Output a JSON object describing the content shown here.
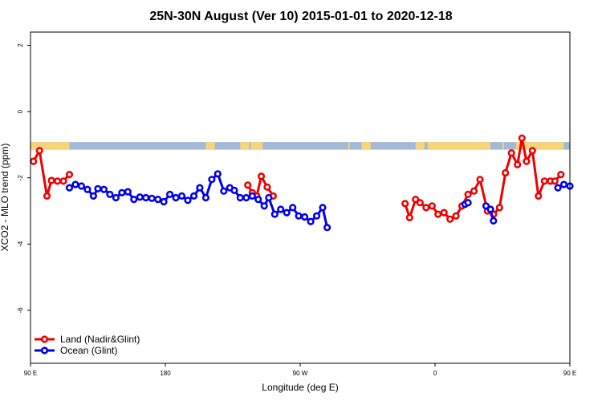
{
  "chart_data": {
    "type": "line",
    "title": "25N-30N August (Ver 10)   2015-01-01 to 2020-12-18",
    "xlabel": "Longitude (deg E)",
    "ylabel": "XCO2 - MLO trend (ppm)",
    "xlim": [
      90,
      450
    ],
    "ylim": [
      -7.6,
      2.4
    ],
    "x_ticks": [
      {
        "value": 90,
        "label": "90 E"
      },
      {
        "value": 180,
        "label": "180"
      },
      {
        "value": 270,
        "label": "90 W"
      },
      {
        "value": 360,
        "label": "0"
      },
      {
        "value": 450,
        "label": "90 E"
      },
      {
        "value": 540,
        "label": "180"
      }
    ],
    "y_ticks": [
      2,
      0,
      -2,
      -4,
      -6
    ],
    "land_ocean_strip": {
      "y_range": [
        -1.15,
        -0.92
      ],
      "ocean_color": "#a3b9d8",
      "land_color": "#f5d47a",
      "land_segments": [
        [
          90,
          116
        ],
        [
          207,
          209
        ],
        [
          209,
          213
        ],
        [
          230,
          236
        ],
        [
          237,
          243
        ],
        [
          243,
          245
        ],
        [
          302,
          303
        ],
        [
          311,
          317
        ],
        [
          347,
          353
        ],
        [
          355,
          397
        ],
        [
          405,
          406
        ],
        [
          414,
          446
        ]
      ]
    },
    "series": [
      {
        "name": "Land (Nadir&Glint)",
        "color": "#ee0000",
        "points": [
          [
            92,
            -1.5
          ],
          [
            96,
            -1.18
          ],
          [
            101,
            -2.55
          ],
          [
            104,
            -2.08
          ],
          [
            108,
            -2.1
          ],
          [
            112,
            -2.1
          ],
          [
            116,
            -1.9
          ],
          [
            235,
            -2.22
          ],
          [
            238,
            -2.45
          ],
          [
            241,
            -2.55
          ],
          [
            244,
            -1.95
          ],
          [
            248,
            -2.28
          ],
          [
            252,
            -2.55
          ],
          [
            340,
            -2.78
          ],
          [
            343,
            -3.2
          ],
          [
            347,
            -2.65
          ],
          [
            350,
            -2.75
          ],
          [
            354,
            -2.9
          ],
          [
            358,
            -2.85
          ],
          [
            362,
            -3.1
          ],
          [
            366,
            -3.05
          ],
          [
            370,
            -3.25
          ],
          [
            374,
            -3.15
          ],
          [
            378,
            -2.85
          ],
          [
            382,
            -2.5
          ],
          [
            386,
            -2.4
          ],
          [
            390,
            -2.05
          ],
          [
            395,
            -3.0
          ],
          [
            399,
            -3.1
          ],
          [
            403,
            -2.9
          ],
          [
            407,
            -1.85
          ],
          [
            411,
            -1.25
          ],
          [
            415,
            -1.6
          ],
          [
            418,
            -0.8
          ],
          [
            421,
            -1.5
          ],
          [
            425,
            -1.18
          ],
          [
            429,
            -2.55
          ],
          [
            433,
            -2.1
          ],
          [
            437,
            -2.1
          ],
          [
            440,
            -2.1
          ],
          [
            444,
            -1.9
          ]
        ]
      },
      {
        "name": "Ocean (Glint)",
        "color": "#0000ee",
        "points": [
          [
            116,
            -2.3
          ],
          [
            120,
            -2.2
          ],
          [
            124,
            -2.25
          ],
          [
            128,
            -2.35
          ],
          [
            132,
            -2.55
          ],
          [
            135,
            -2.33
          ],
          [
            139,
            -2.35
          ],
          [
            143,
            -2.5
          ],
          [
            147,
            -2.6
          ],
          [
            151,
            -2.45
          ],
          [
            155,
            -2.42
          ],
          [
            159,
            -2.65
          ],
          [
            163,
            -2.58
          ],
          [
            167,
            -2.6
          ],
          [
            171,
            -2.62
          ],
          [
            175,
            -2.65
          ],
          [
            179,
            -2.72
          ],
          [
            183,
            -2.5
          ],
          [
            187,
            -2.6
          ],
          [
            191,
            -2.55
          ],
          [
            195,
            -2.68
          ],
          [
            199,
            -2.55
          ],
          [
            203,
            -2.3
          ],
          [
            207,
            -2.6
          ],
          [
            211,
            -2.05
          ],
          [
            215,
            -1.88
          ],
          [
            219,
            -2.4
          ],
          [
            223,
            -2.3
          ],
          [
            226,
            -2.38
          ],
          [
            230,
            -2.6
          ],
          [
            234,
            -2.6
          ],
          [
            238,
            -2.55
          ],
          [
            242,
            -2.65
          ],
          [
            246,
            -2.85
          ],
          [
            249,
            -2.6
          ],
          [
            253,
            -3.1
          ],
          [
            257,
            -2.95
          ],
          [
            261,
            -3.05
          ],
          [
            265,
            -2.9
          ],
          [
            269,
            -3.15
          ],
          [
            273,
            -3.18
          ],
          [
            277,
            -3.32
          ],
          [
            281,
            -3.15
          ],
          [
            285,
            -2.9
          ],
          [
            288,
            -3.5
          ],
          [
            380,
            -2.8
          ],
          [
            382,
            -2.75
          ],
          [
            394,
            -2.85
          ],
          [
            397,
            -2.95
          ],
          [
            399,
            -3.3
          ],
          [
            442,
            -2.3
          ],
          [
            446,
            -2.2
          ],
          [
            450,
            -2.25
          ]
        ]
      }
    ],
    "legend": "bottom-left",
    "grid": false
  }
}
